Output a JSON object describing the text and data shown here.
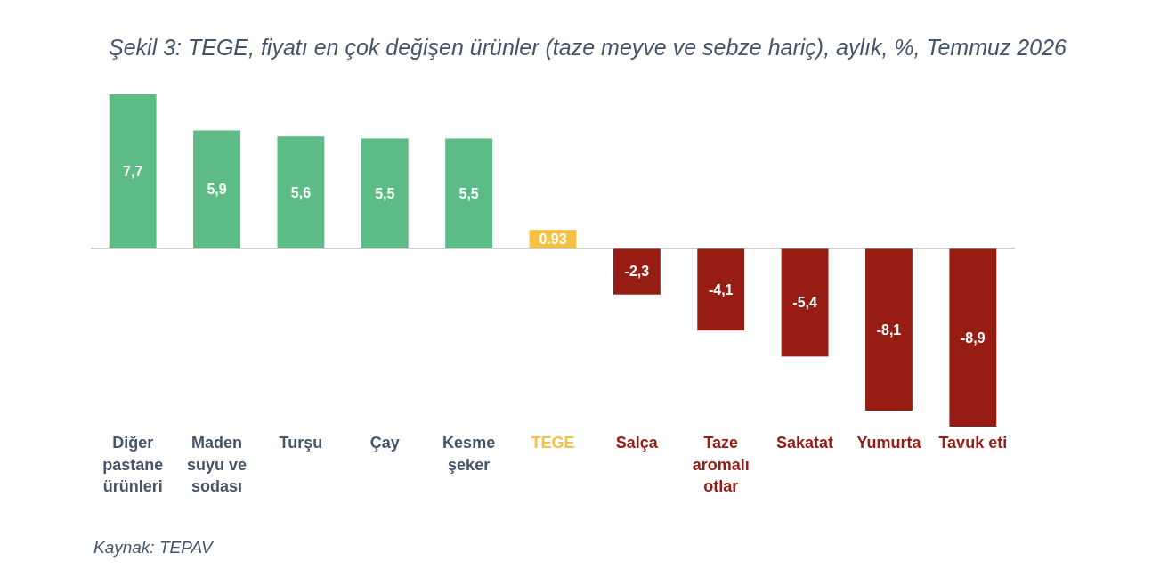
{
  "chart_data": {
    "type": "bar",
    "title": "Şekil 3: TEGE, fiyatı en çok değişen ürünler (taze meyve ve sebze hariç), aylık, %, Temmuz 2026",
    "categories": [
      "Diğer pastane ürünleri",
      "Maden suyu ve sodası",
      "Turşu",
      "Çay",
      "Kesme şeker",
      "TEGE",
      "Salça",
      "Taze aromalı otlar",
      "Sakatat",
      "Yumurta",
      "Tavuk eti"
    ],
    "values": [
      7.7,
      5.9,
      5.6,
      5.5,
      5.5,
      0.93,
      -2.3,
      -4.1,
      -5.4,
      -8.1,
      -8.9
    ],
    "colors": [
      "#5dbb86",
      "#5dbb86",
      "#5dbb86",
      "#5dbb86",
      "#5dbb86",
      "#f6c143",
      "#961c14",
      "#961c14",
      "#961c14",
      "#961c14",
      "#961c14"
    ],
    "value_labels": [
      "7,7",
      "5,9",
      "5,6",
      "5,5",
      "5,5",
      "0.93",
      "-2,3",
      "-4,1",
      "-5,4",
      "-8,1",
      "-8,9"
    ],
    "annotations": [
      "Kaynak: TEPAV"
    ]
  }
}
